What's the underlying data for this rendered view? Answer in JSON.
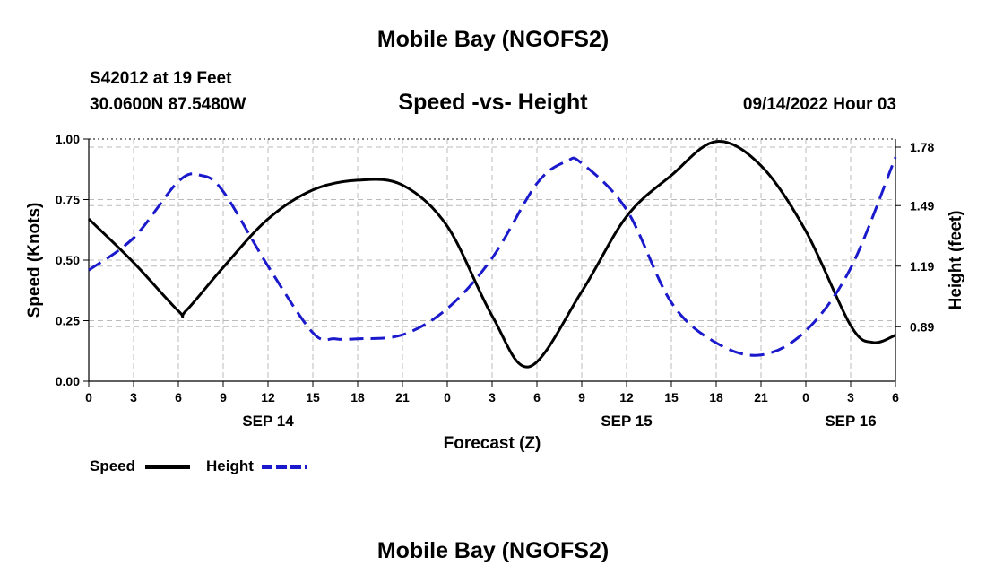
{
  "header": {
    "title": "Mobile Bay (NGOFS2)",
    "station": "S42012 at 19 Feet",
    "coords": "30.0600N  87.5480W",
    "datetime": "09/14/2022 Hour 03"
  },
  "footer": {
    "title": "Mobile Bay (NGOFS2)"
  },
  "colors": {
    "speed": "#000000",
    "height": "#1a1acc",
    "grid": "#bbbbbb"
  },
  "chart_data": {
    "type": "line",
    "title": "Speed -vs- Height",
    "xlabel": "Forecast (Z)",
    "ylabel": "Speed (Knots)",
    "y2label": "Height (feet)",
    "xlim": [
      0,
      54
    ],
    "ylim": [
      0,
      1
    ],
    "y2lim": [
      0.62,
      1.82
    ],
    "x_ticks": [
      0,
      3,
      6,
      9,
      12,
      15,
      18,
      21,
      24,
      27,
      30,
      33,
      36,
      39,
      42,
      45,
      48,
      51,
      54
    ],
    "x_tick_labels": [
      "0",
      "3",
      "6",
      "9",
      "12",
      "15",
      "18",
      "21",
      "0",
      "3",
      "6",
      "9",
      "12",
      "15",
      "18",
      "21",
      "0",
      "3",
      "6"
    ],
    "y_ticks": [
      0,
      0.25,
      0.5,
      0.75,
      1.0
    ],
    "y_tick_labels": [
      "0.00",
      "0.25",
      "0.50",
      "0.75",
      "1.00"
    ],
    "y2_ticks": [
      0.89,
      1.19,
      1.49,
      1.78
    ],
    "y2_tick_labels": [
      "0.89",
      "1.19",
      "1.49",
      "1.78"
    ],
    "date_labels": [
      {
        "x": 12,
        "label": "SEP 14"
      },
      {
        "x": 36,
        "label": "SEP 15"
      },
      {
        "x": 51,
        "label": "SEP 16"
      }
    ],
    "legend_position": "bottom-left",
    "series": [
      {
        "name": "Speed",
        "axis": "left",
        "style": "solid",
        "x": [
          0,
          3,
          6,
          6.5,
          9,
          12,
          15,
          18,
          21,
          24,
          27,
          29.5,
          33,
          36,
          39,
          42,
          45,
          48,
          51,
          52.5,
          54
        ],
        "values": [
          0.67,
          0.49,
          0.29,
          0.29,
          0.47,
          0.67,
          0.79,
          0.83,
          0.81,
          0.64,
          0.27,
          0.06,
          0.37,
          0.68,
          0.85,
          0.99,
          0.89,
          0.62,
          0.23,
          0.16,
          0.19
        ]
      },
      {
        "name": "Height",
        "axis": "right",
        "style": "dashed",
        "x": [
          0,
          3,
          6,
          7.5,
          9,
          12,
          15,
          16.5,
          18,
          21,
          24,
          27,
          30,
          32,
          33,
          36,
          39,
          42,
          45,
          48,
          51,
          54
        ],
        "values": [
          1.17,
          1.33,
          1.61,
          1.64,
          1.56,
          1.19,
          0.86,
          0.83,
          0.83,
          0.85,
          0.98,
          1.23,
          1.6,
          1.71,
          1.7,
          1.47,
          1.01,
          0.81,
          0.75,
          0.87,
          1.18,
          1.73
        ]
      }
    ]
  }
}
